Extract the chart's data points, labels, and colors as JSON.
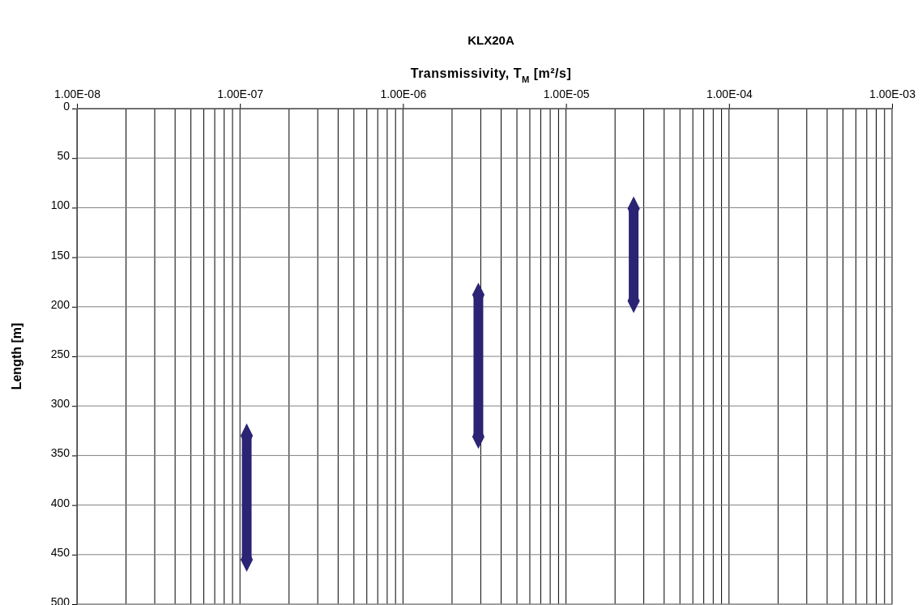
{
  "chart_data": {
    "type": "line",
    "title": "KLX20A",
    "xlabel": "Transmissivity, T$_{M}$ [m²/s]",
    "ylabel": "Length [m]",
    "log": "x",
    "grid": true,
    "marker": "diamond",
    "line_style": "solid",
    "xlim": [
      1e-08,
      0.001
    ],
    "xticks": [
      {
        "value": 1e-08,
        "label": "1.00E-08"
      },
      {
        "value": 2e-08,
        "label": null
      },
      {
        "value": 3e-08,
        "label": null
      },
      {
        "value": 4e-08,
        "label": null
      },
      {
        "value": 5e-08,
        "label": null
      },
      {
        "value": 6e-08,
        "label": null
      },
      {
        "value": 7e-08,
        "label": null
      },
      {
        "value": 8e-08,
        "label": null
      },
      {
        "value": 9e-08,
        "label": null
      },
      {
        "value": 1e-07,
        "label": "1.00E-07"
      },
      {
        "value": 2e-07,
        "label": null
      },
      {
        "value": 3e-07,
        "label": null
      },
      {
        "value": 4e-07,
        "label": null
      },
      {
        "value": 5e-07,
        "label": null
      },
      {
        "value": 6e-07,
        "label": null
      },
      {
        "value": 7e-07,
        "label": null
      },
      {
        "value": 8e-07,
        "label": null
      },
      {
        "value": 9e-07,
        "label": null
      },
      {
        "value": 1e-06,
        "label": "1.00E-06"
      },
      {
        "value": 2e-06,
        "label": null
      },
      {
        "value": 3e-06,
        "label": null
      },
      {
        "value": 4e-06,
        "label": null
      },
      {
        "value": 5e-06,
        "label": null
      },
      {
        "value": 6e-06,
        "label": null
      },
      {
        "value": 7e-06,
        "label": null
      },
      {
        "value": 8e-06,
        "label": null
      },
      {
        "value": 9e-06,
        "label": null
      },
      {
        "value": 1e-05,
        "label": "1.00E-05"
      },
      {
        "value": 2e-05,
        "label": null
      },
      {
        "value": 3e-05,
        "label": null
      },
      {
        "value": 4e-05,
        "label": null
      },
      {
        "value": 5e-05,
        "label": null
      },
      {
        "value": 6e-05,
        "label": null
      },
      {
        "value": 7e-05,
        "label": null
      },
      {
        "value": 8e-05,
        "label": null
      },
      {
        "value": 9e-05,
        "label": null
      },
      {
        "value": 0.0001,
        "label": "1.00E-04"
      },
      {
        "value": 0.0002,
        "label": null
      },
      {
        "value": 0.0003,
        "label": null
      },
      {
        "value": 0.0004,
        "label": null
      },
      {
        "value": 0.0005,
        "label": null
      },
      {
        "value": 0.0006,
        "label": null
      },
      {
        "value": 0.0007,
        "label": null
      },
      {
        "value": 0.0008,
        "label": null
      },
      {
        "value": 0.0009,
        "label": null
      },
      {
        "value": 0.001,
        "label": "1.00E-03"
      }
    ],
    "ylim": [
      500,
      0
    ],
    "yticks": [
      0,
      50,
      100,
      150,
      200,
      250,
      300,
      350,
      400,
      450,
      500
    ],
    "series": [
      {
        "color": "#2b2373",
        "x": [
          1.1e-07,
          1.1e-07
        ],
        "values": [
          330,
          455
        ]
      },
      {
        "color": "#2b2373",
        "x": [
          2.9e-06,
          2.9e-06
        ],
        "values": [
          188,
          331
        ]
      },
      {
        "color": "#2b2373",
        "x": [
          2.6e-05,
          2.6e-05
        ],
        "values": [
          101,
          194
        ]
      }
    ]
  }
}
